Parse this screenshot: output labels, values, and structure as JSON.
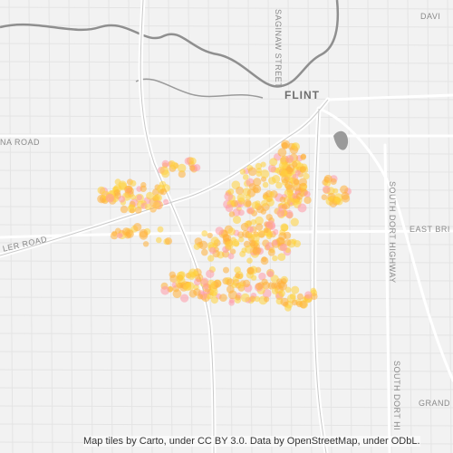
{
  "map": {
    "colors": {
      "background": "#f2f2f2",
      "river": "#8d8d8d",
      "highway": "#ffffff",
      "road": "#dcdcdc",
      "urban": "#e9e9e9",
      "point": "#ffb03a",
      "point_core": "#ffd23c",
      "point_fringe": "#ff9aa8"
    },
    "labels": {
      "flint": "FLINT",
      "saginaw_street": "SAGINAW STREET",
      "south_dort_1": "SOUTH DORT HIGHWAY",
      "south_dort_2": "SOUTH DORT HI",
      "east_bri": "EAST BRI",
      "grand": "GRAND",
      "ler_road": "LER ROAD",
      "na_road": "NA ROAD",
      "davi": "DAVI"
    },
    "attribution": "Map tiles by Carto, under CC BY 3.0. Data by OpenStreetMap, under ODbL."
  }
}
